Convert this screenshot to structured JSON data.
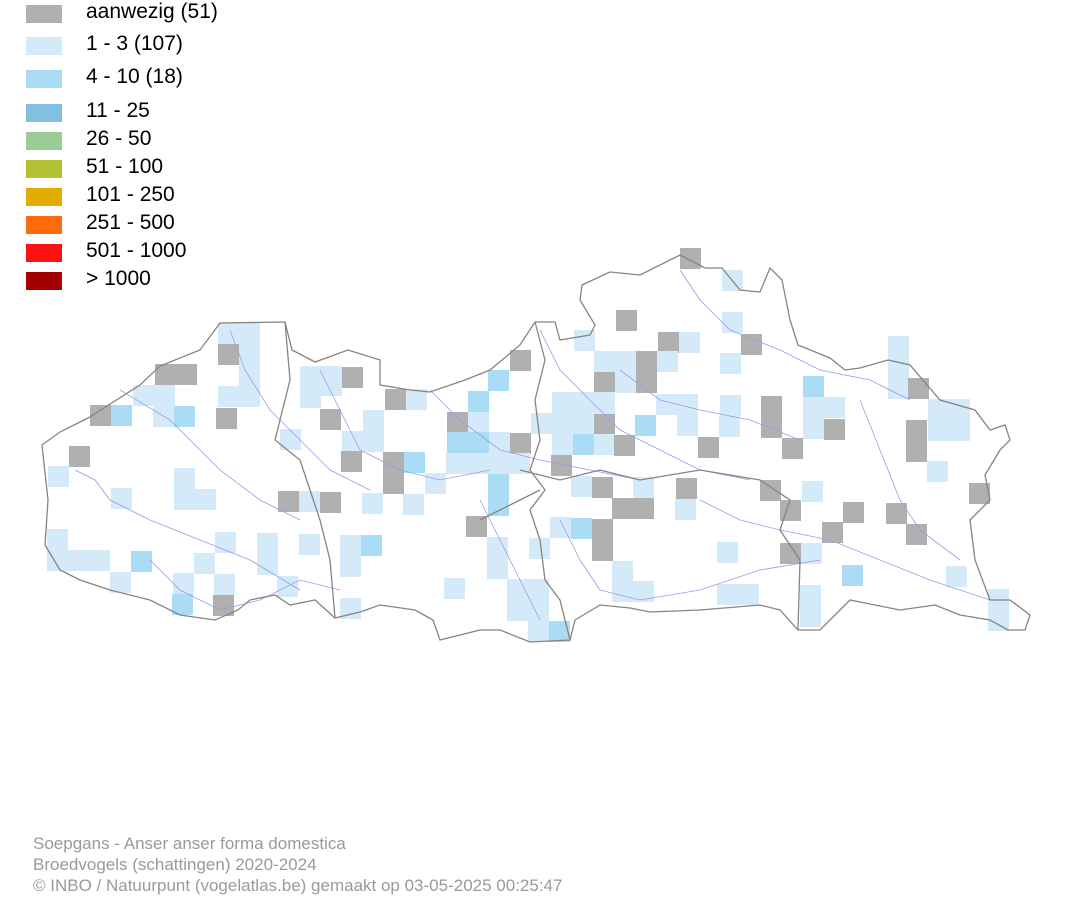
{
  "legend": [
    {
      "label": "aanwezig (51)",
      "color": "#b0b0b0"
    },
    {
      "label": "1 - 3 (107)",
      "color": "#d4eaf9"
    },
    {
      "label": "4 - 10 (18)",
      "color": "#aadcf5"
    },
    {
      "label": "11 - 25",
      "color": "#83bfe0"
    },
    {
      "label": "26 - 50",
      "color": "#9bcc98"
    },
    {
      "label": "51 - 100",
      "color": "#b2c234"
    },
    {
      "label": "101 - 250",
      "color": "#e3ad00"
    },
    {
      "label": "251 - 500",
      "color": "#ff6b0a"
    },
    {
      "label": "501 - 1000",
      "color": "#ff1111"
    },
    {
      "label": "> 1000",
      "color": "#a30000"
    }
  ],
  "footer": {
    "species": "Soepgans - Anser anser forma domestica",
    "dataset": "Broedvogels (schattingen) 2020-2024",
    "credit": "© INBO / Natuurpunt (vogelatlas.be) gemaakt op 03-05-2025 00:25:47"
  },
  "colors": {
    "border": "#8a8480",
    "river": "#9a9ae8",
    "present": "#b0b0b0",
    "class1": "#d4eaf9",
    "class2": "#aadcf5"
  }
}
